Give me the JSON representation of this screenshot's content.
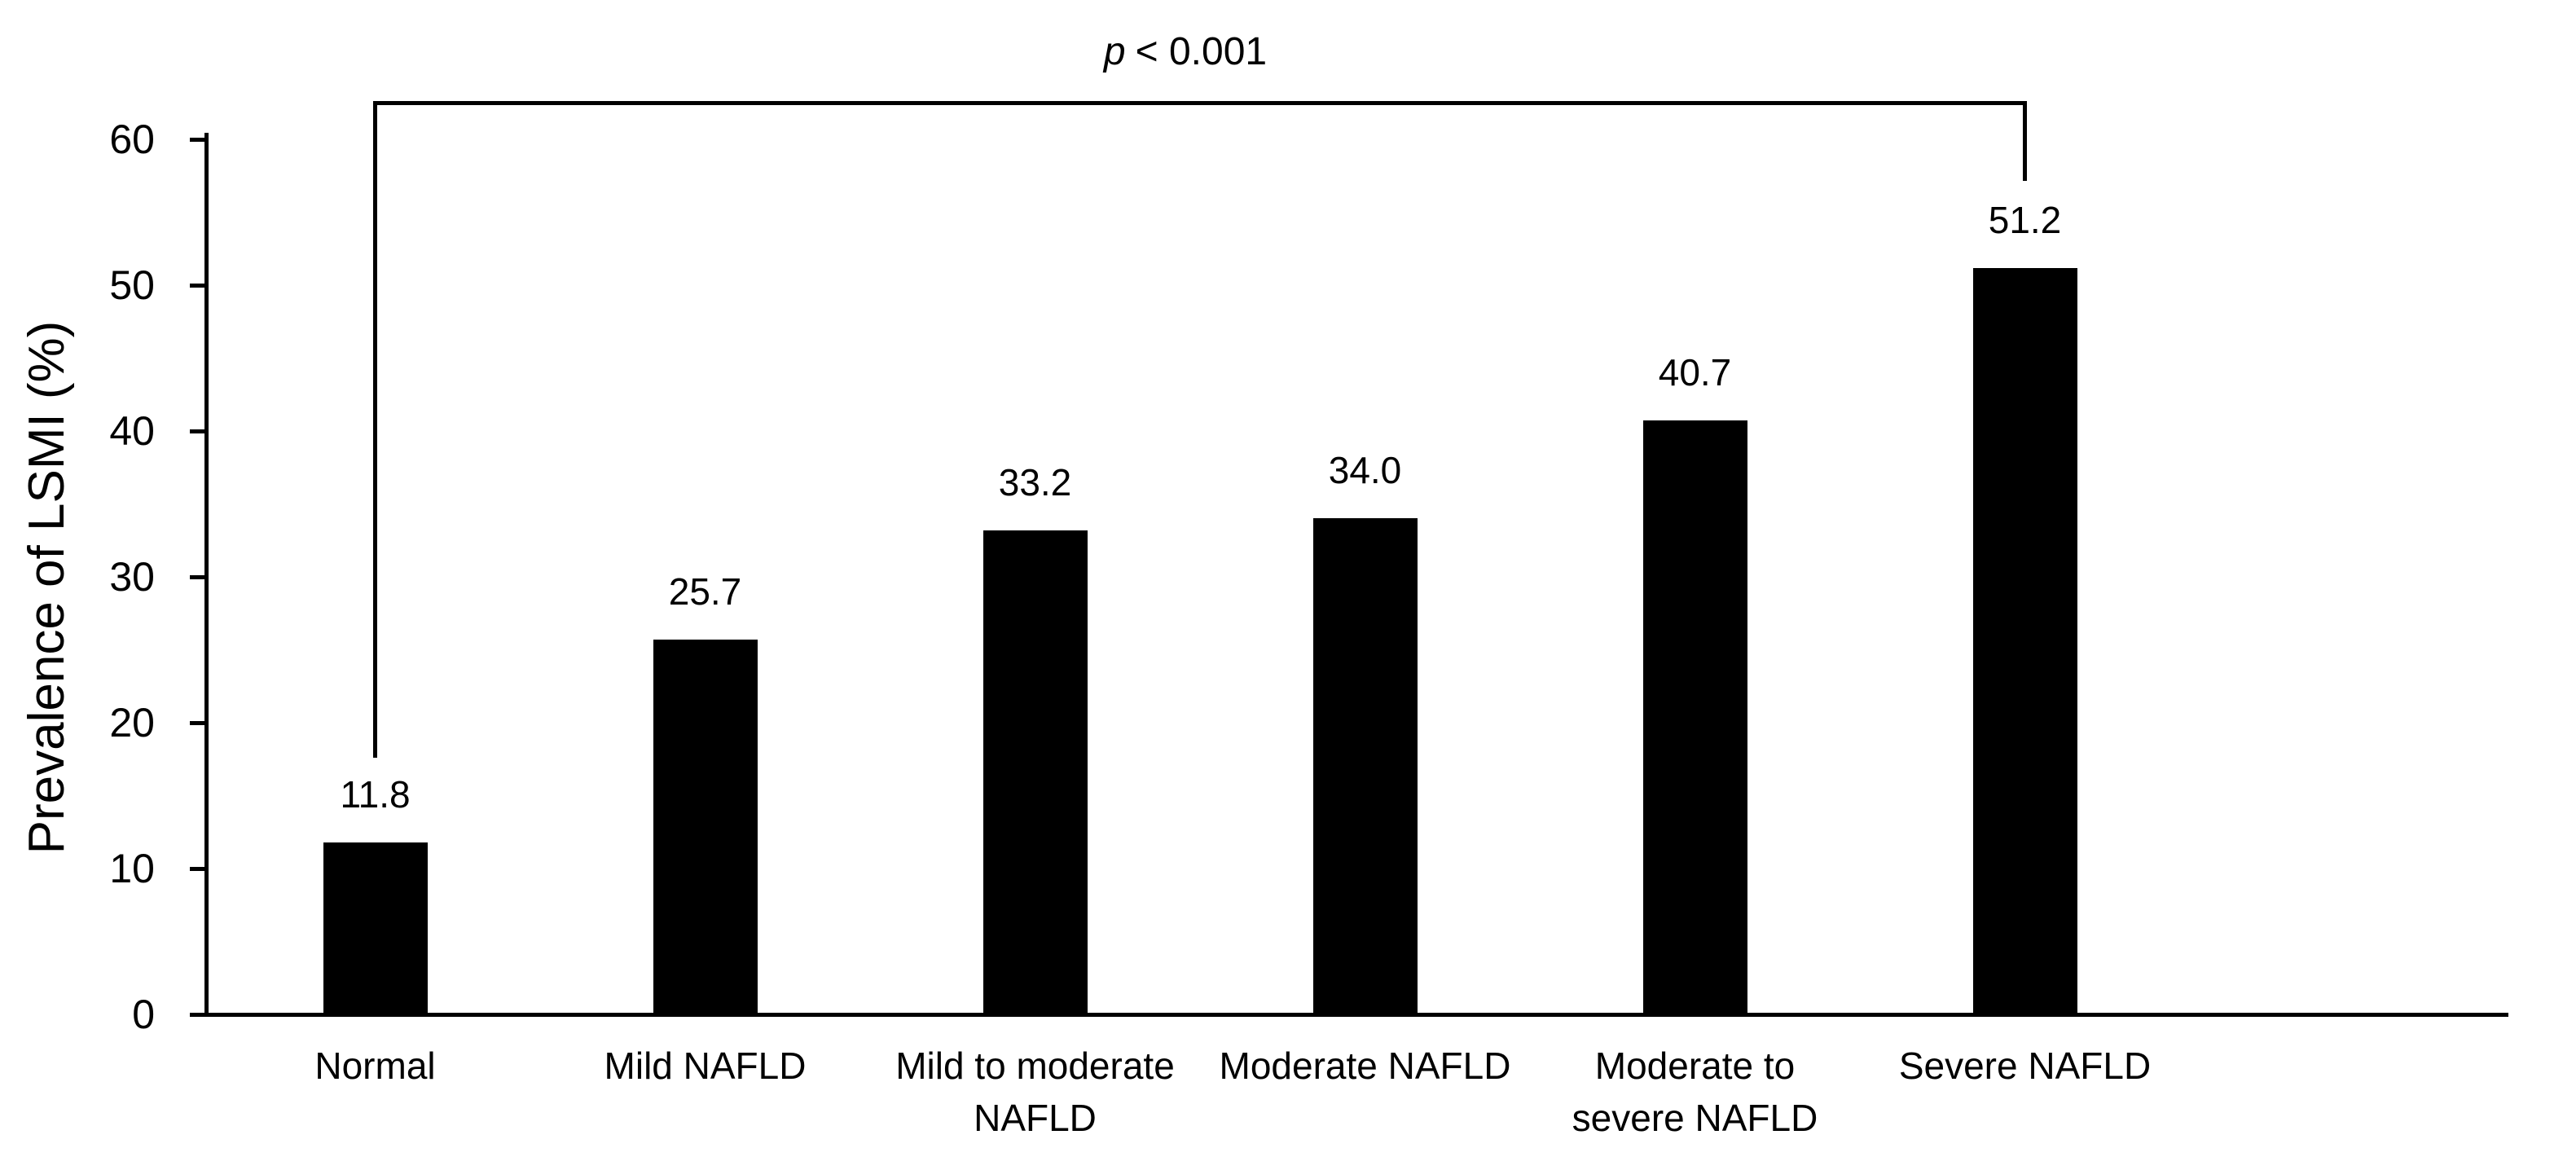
{
  "figure": {
    "y_axis_title": "Prevalence of LSMI (%)",
    "significance": {
      "symbol": "p",
      "comparison": "< 0.001",
      "display": "p < 0.001"
    }
  },
  "chart_data": {
    "type": "bar",
    "title": "",
    "xlabel": "",
    "ylabel": "Prevalence of LSMI (%)",
    "ylim": [
      0,
      60
    ],
    "yticks": [
      0,
      10,
      20,
      30,
      40,
      50,
      60
    ],
    "grid": false,
    "legend": false,
    "bar_color": "#000000",
    "background_color": "#ffffff",
    "categories": [
      "Normal",
      "Mild NAFLD",
      "Mild to moderate NAFLD",
      "Moderate NAFLD",
      "Moderate to severe NAFLD",
      "Severe NAFLD"
    ],
    "category_lines": [
      [
        "Normal"
      ],
      [
        "Mild NAFLD"
      ],
      [
        "Mild to moderate",
        "NAFLD"
      ],
      [
        "Moderate NAFLD"
      ],
      [
        "Moderate to",
        "severe NAFLD"
      ],
      [
        "Severe NAFLD"
      ]
    ],
    "values": [
      11.8,
      25.7,
      33.2,
      34.0,
      40.7,
      51.2
    ],
    "value_labels": [
      "11.8",
      "25.7",
      "33.2",
      "34.0",
      "40.7",
      "51.2"
    ],
    "annotation": {
      "text": "p < 0.001",
      "from_category": "Normal",
      "to_category": "Severe NAFLD",
      "position": "top"
    }
  }
}
